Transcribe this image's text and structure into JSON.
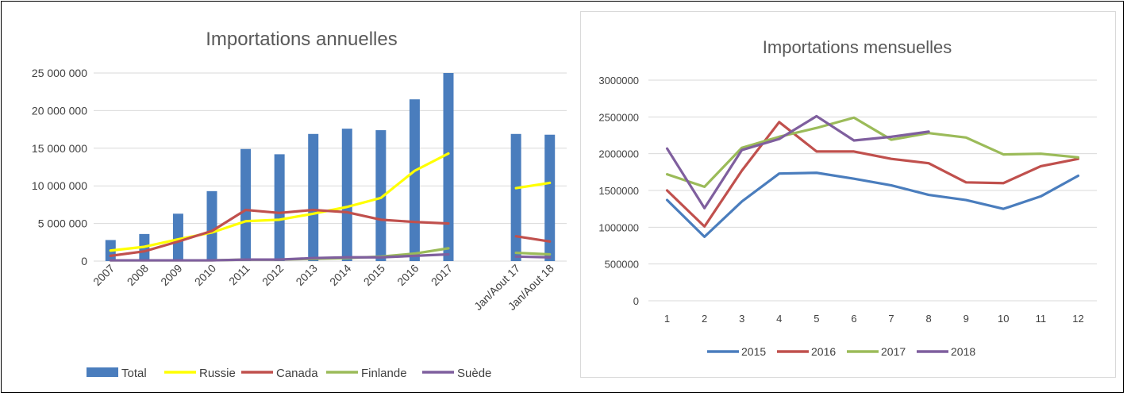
{
  "colors": {
    "Total": "#4a7dbd",
    "Russie": "#ffff00",
    "Canada": "#c0504d",
    "Finlande": "#9bbb59",
    "Suède": "#7f5f9e",
    "2015": "#4a7dbd",
    "2016": "#c0504d",
    "2017": "#9bbb59",
    "2018": "#7f5f9e",
    "grid": "#d9d9d9",
    "text": "#404040",
    "title": "#595959"
  },
  "chart_data": [
    {
      "type": "bar",
      "title": "Importations annuelles",
      "ylim": [
        0,
        25000000
      ],
      "yticks": [
        0,
        5000000,
        10000000,
        15000000,
        20000000,
        25000000
      ],
      "ytick_labels": [
        "0",
        "5 000 000",
        "10 000 000",
        "15 000 000",
        "20 000 000",
        "25 000 000"
      ],
      "grid": true,
      "legend_position": "bottom",
      "categories": [
        "2007",
        "2008",
        "2009",
        "2010",
        "2011",
        "2012",
        "2013",
        "2014",
        "2015",
        "2016",
        "2017",
        "",
        "Jan/Aout 17",
        "Jan/Aout 18"
      ],
      "bar_series": [
        {
          "name": "Total",
          "values": [
            2800000,
            3600000,
            6300000,
            9300000,
            14900000,
            14200000,
            16900000,
            17600000,
            17400000,
            21500000,
            25000000,
            null,
            16900000,
            16800000
          ]
        }
      ],
      "line_series": [
        {
          "name": "Russie",
          "values": [
            1400000,
            1900000,
            2900000,
            3800000,
            5300000,
            5500000,
            6300000,
            7200000,
            8400000,
            12000000,
            14300000,
            null,
            9700000,
            10400000
          ]
        },
        {
          "name": "Canada",
          "values": [
            700000,
            1300000,
            2600000,
            4000000,
            6800000,
            6400000,
            6800000,
            6500000,
            5500000,
            5200000,
            5000000,
            null,
            3300000,
            2600000
          ]
        },
        {
          "name": "Finlande",
          "values": [
            100000,
            100000,
            100000,
            100000,
            200000,
            200000,
            300000,
            400000,
            600000,
            1000000,
            1700000,
            null,
            1100000,
            900000
          ]
        },
        {
          "name": "Suède",
          "values": [
            100000,
            100000,
            100000,
            100000,
            200000,
            200000,
            400000,
            500000,
            500000,
            700000,
            900000,
            null,
            600000,
            500000
          ]
        }
      ],
      "legend": [
        "Total",
        "Russie",
        "Canada",
        "Finlande",
        "Suède"
      ]
    },
    {
      "type": "line",
      "title": "Importations mensuelles",
      "ylim": [
        0,
        3000000
      ],
      "yticks": [
        0,
        500000,
        1000000,
        1500000,
        2000000,
        2500000,
        3000000
      ],
      "ytick_labels": [
        "0",
        "500000",
        "1000000",
        "1500000",
        "2000000",
        "2500000",
        "3000000"
      ],
      "grid": true,
      "legend_position": "bottom",
      "x": [
        "1",
        "2",
        "3",
        "4",
        "5",
        "6",
        "7",
        "8",
        "9",
        "10",
        "11",
        "12"
      ],
      "series": [
        {
          "name": "2015",
          "values": [
            1370000,
            870000,
            1350000,
            1730000,
            1740000,
            1660000,
            1570000,
            1440000,
            1370000,
            1250000,
            1420000,
            1700000
          ]
        },
        {
          "name": "2016",
          "values": [
            1500000,
            1010000,
            1770000,
            2430000,
            2030000,
            2030000,
            1930000,
            1870000,
            1610000,
            1600000,
            1830000,
            1930000
          ]
        },
        {
          "name": "2017",
          "values": [
            1720000,
            1550000,
            2080000,
            2230000,
            2350000,
            2490000,
            2190000,
            2280000,
            2220000,
            1990000,
            2000000,
            1950000
          ]
        },
        {
          "name": "2018",
          "values": [
            2070000,
            1260000,
            2050000,
            2200000,
            2510000,
            2180000,
            2230000,
            2300000,
            null,
            null,
            null,
            null
          ]
        }
      ],
      "legend": [
        "2015",
        "2016",
        "2017",
        "2018"
      ]
    }
  ]
}
